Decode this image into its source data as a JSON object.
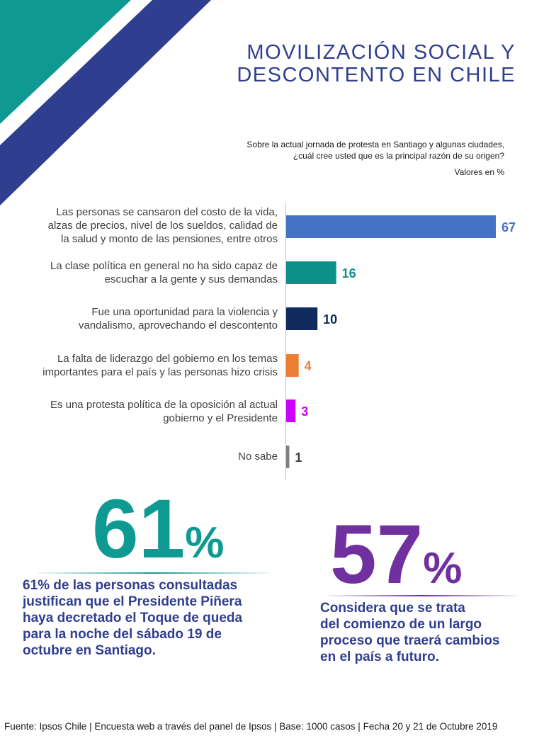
{
  "header": {
    "title_line1": "MOVILIZACIÓN SOCIAL Y",
    "title_line2": "DESCONTENTO EN CHILE",
    "question_line1": "Sobre la actual jornada de protesta en Santiago y algunas ciudades,",
    "question_line2": "¿cuál cree usted que es la principal razón de su origen?",
    "units": "Valores en %"
  },
  "colors": {
    "title": "#2f3e8f",
    "stripe_teal": "#0e9a93",
    "stripe_navy": "#2f3e8f"
  },
  "chart_data": {
    "type": "bar",
    "orientation": "horizontal",
    "title": "Sobre la actual jornada de protesta en Santiago y algunas ciudades, ¿cuál cree usted que es la principal razón de su origen?",
    "xlabel": "",
    "ylabel": "",
    "units": "Valores en %",
    "xlim": [
      0,
      70
    ],
    "categories": [
      "Las personas se cansaron del costo de la vida, alzas de precios, nivel de los sueldos, calidad de la salud y monto de las pensiones, entre otros",
      "La clase política en general no ha sido capaz de escuchar a la gente y sus demandas",
      "Fue una oportunidad para la violencia y vandalismo, aprovechando el descontento",
      "La falta de liderazgo del gobierno en los temas importantes para el país y las personas hizo crisis",
      "Es una protesta política de la oposición al actual gobierno y el Presidente",
      "No sabe"
    ],
    "category_lines": [
      [
        "Las personas se cansaron del costo de la vida,",
        "alzas de precios, nivel de los sueldos, calidad de",
        "la salud y monto de las pensiones, entre otros"
      ],
      [
        "La clase política en general no ha sido capaz de",
        "escuchar a la gente y sus demandas"
      ],
      [
        "Fue una oportunidad para la violencia y",
        "vandalismo, aprovechando el descontento"
      ],
      [
        "La falta de liderazgo del gobierno en los temas",
        "importantes para el país y las personas hizo crisis"
      ],
      [
        "Es una protesta política de la oposición al actual",
        "gobierno y el Presidente"
      ],
      [
        "No sabe"
      ]
    ],
    "values": [
      67,
      16,
      10,
      4,
      3,
      1
    ],
    "value_labels": [
      "67",
      "16",
      "10",
      "4",
      "3",
      "1"
    ],
    "colors": [
      "#4472c4",
      "#0e8f8a",
      "#0f2a5c",
      "#ed7d31",
      "#cc00ff",
      "#808080"
    ]
  },
  "stats": [
    {
      "number": "61",
      "percent": "%",
      "color": "#0e9a93",
      "lines": [
        "61% de las personas consultadas",
        "justifican que el Presidente Piñera",
        "haya decretado el Toque de queda",
        "para la noche del sábado 19 de",
        "octubre en Santiago."
      ]
    },
    {
      "number": "57",
      "percent": "%",
      "color": "#7030a0",
      "lines": [
        "Considera que se trata",
        "del comienzo de un largo",
        "proceso que traerá cambios",
        "en el país a futuro."
      ]
    }
  ],
  "footer": {
    "text": "Fuente: Ipsos Chile | Encuesta web a través del panel de Ipsos | Base: 1000 casos | Fecha 20 y 21 de Octubre 2019"
  }
}
